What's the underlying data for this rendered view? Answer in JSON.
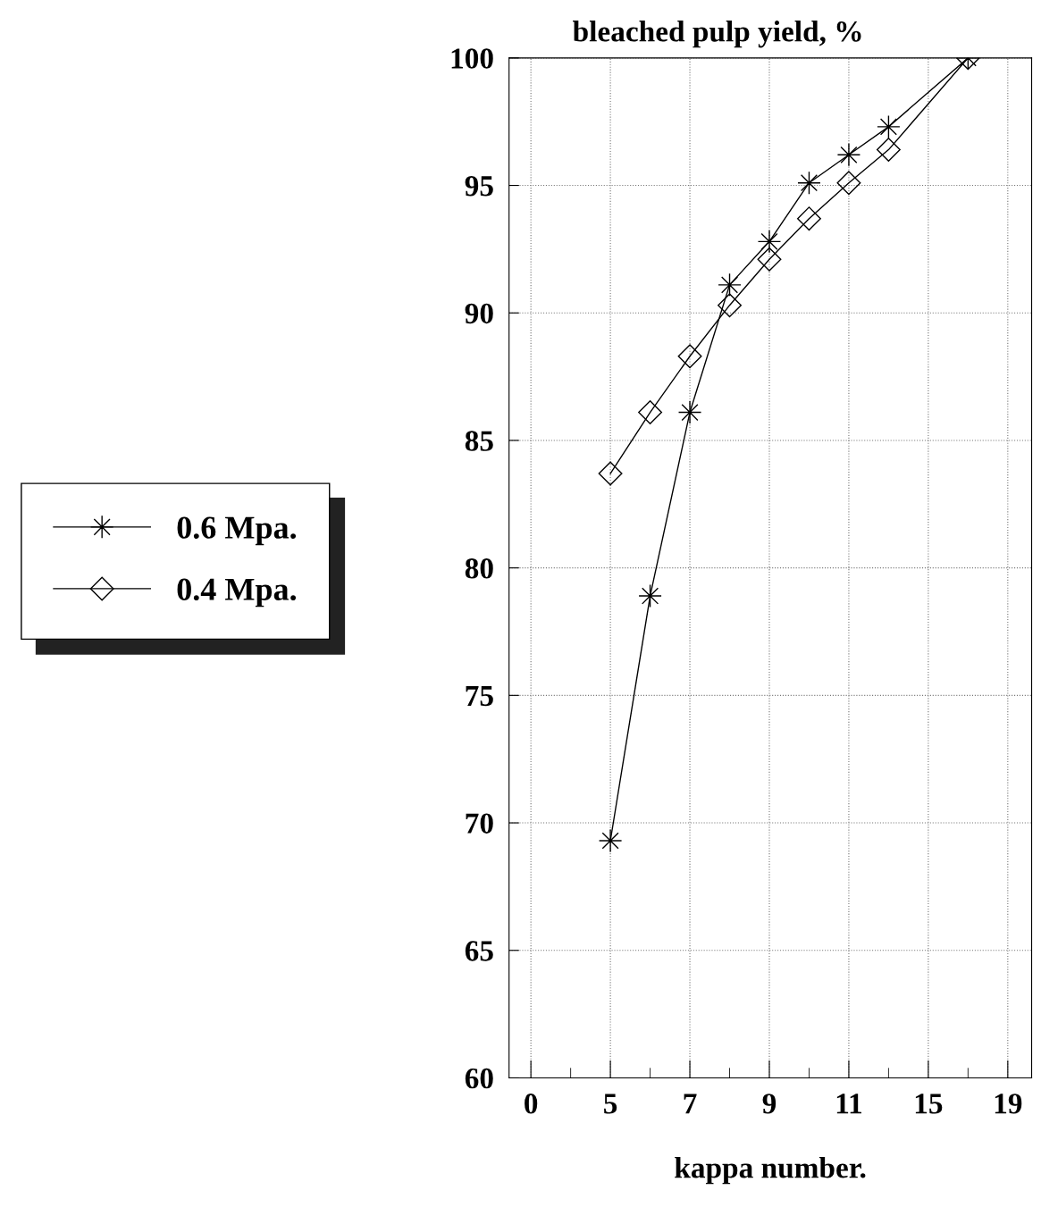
{
  "chart_data": {
    "type": "line",
    "xlabel": "kappa number.",
    "ylabel": "bleached pulp yield, %",
    "categories": [
      "0",
      null,
      "5",
      null,
      "7",
      null,
      "9",
      null,
      "11",
      null,
      "15",
      null,
      "19"
    ],
    "series": [
      {
        "name": "0.6 Mpa.",
        "color": "#000000",
        "marker": "star",
        "values": [
          null,
          null,
          69.3,
          78.9,
          86.1,
          91.1,
          92.8,
          95.1,
          96.2,
          97.3,
          null,
          100,
          null
        ]
      },
      {
        "name": "0.4 Mpa.",
        "color": "#000000",
        "marker": "diamond",
        "values": [
          null,
          null,
          83.7,
          86.1,
          88.3,
          90.3,
          92.1,
          93.7,
          95.1,
          96.4,
          null,
          100,
          null
        ]
      }
    ],
    "ylim": [
      60,
      100
    ],
    "yticks": [
      60,
      65,
      70,
      75,
      80,
      85,
      90,
      95,
      100
    ],
    "grid": true,
    "legend": "left",
    "line_style": "solid"
  }
}
